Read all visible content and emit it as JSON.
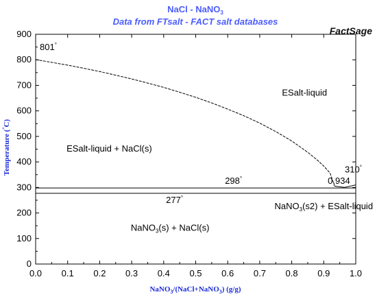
{
  "chart_data": {
    "type": "line",
    "title": "NaCl - NaNO3",
    "subtitle": "Data from FTsalt - FACT salt databases",
    "brand": "FactSage",
    "xlabel": "NaNO3/(NaCl+NaNO3) (g/g)",
    "ylabel": "Temperature (°C)",
    "xlim": [
      0,
      1
    ],
    "ylim": [
      0,
      900
    ],
    "xticks": [
      "0.0",
      "0.1",
      "0.2",
      "0.3",
      "0.4",
      "0.5",
      "0.6",
      "0.7",
      "0.8",
      "0.9",
      "1.0"
    ],
    "yticks": [
      "0",
      "100",
      "200",
      "300",
      "400",
      "500",
      "600",
      "700",
      "800",
      "900"
    ],
    "grid": false,
    "series": [
      {
        "values": [
          [
            0.0,
            801
          ],
          [
            0.05,
            790
          ],
          [
            0.1,
            779
          ],
          [
            0.15,
            767
          ],
          [
            0.2,
            754
          ],
          [
            0.25,
            740
          ],
          [
            0.3,
            725
          ],
          [
            0.35,
            709
          ],
          [
            0.4,
            692
          ],
          [
            0.45,
            673
          ],
          [
            0.5,
            653
          ],
          [
            0.55,
            631
          ],
          [
            0.6,
            607
          ],
          [
            0.65,
            581
          ],
          [
            0.7,
            552
          ],
          [
            0.75,
            519
          ],
          [
            0.8,
            482
          ],
          [
            0.85,
            438
          ],
          [
            0.88,
            407
          ],
          [
            0.9,
            384
          ],
          [
            0.92,
            356
          ],
          [
            0.934,
            305
          ]
        ]
      },
      {
        "values": [
          [
            0.0,
            298
          ],
          [
            1.0,
            298
          ]
        ]
      },
      {
        "values": [
          [
            0.0,
            277
          ],
          [
            1.0,
            277
          ]
        ]
      },
      {
        "values": [
          [
            0.934,
            305
          ],
          [
            0.965,
            300
          ],
          [
            1.0,
            310
          ]
        ]
      }
    ],
    "annotations": [
      {
        "text": "801",
        "unit": "°",
        "x": 0.0,
        "y": 801
      },
      {
        "text": "298",
        "unit": "°",
        "x": 0.6,
        "y": 298
      },
      {
        "text": "277",
        "unit": "°",
        "x": 0.45,
        "y": 277
      },
      {
        "text": "310",
        "unit": "°",
        "x": 0.97,
        "y": 310
      },
      {
        "text": "0.934",
        "unit": "",
        "x": 0.934,
        "y": 298
      }
    ],
    "regions": [
      {
        "label": "ESalt-liquid",
        "x": 0.84,
        "y": 660
      },
      {
        "label": "ESalt-liquid + NaCl(s)",
        "x": 0.23,
        "y": 440
      },
      {
        "label": "NaNO3(s2) + ESalt-liquid",
        "x": 0.9,
        "y": 215
      },
      {
        "label": "NaNO3(s) + NaCl(s)",
        "x": 0.42,
        "y": 130
      }
    ]
  }
}
